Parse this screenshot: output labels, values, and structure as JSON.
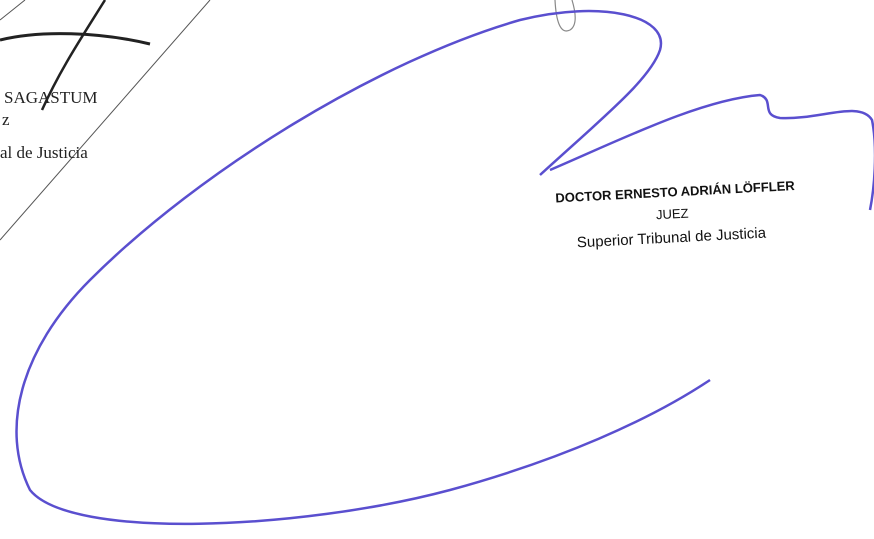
{
  "left_signature": {
    "name": "SAGASTUM",
    "role": "z",
    "court": "al de Justicia"
  },
  "right_signature": {
    "name": "DOCTOR ERNESTO ADRIÁN LÖFFLER",
    "role": "JUEZ",
    "court": "Superior Tribunal de Justicia"
  }
}
